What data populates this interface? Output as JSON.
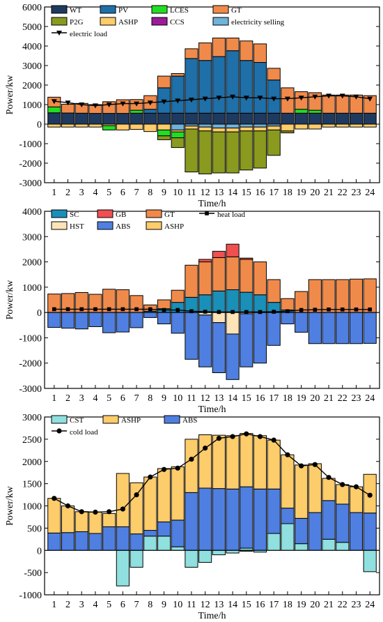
{
  "hours": [
    "1",
    "2",
    "3",
    "4",
    "5",
    "6",
    "7",
    "8",
    "9",
    "10",
    "11",
    "12",
    "13",
    "14",
    "15",
    "16",
    "17",
    "18",
    "19",
    "20",
    "21",
    "22",
    "23",
    "24"
  ],
  "chart_data": [
    {
      "type": "bar",
      "stacking": "positive-negative",
      "xlabel": "Time/h",
      "ylabel": "Power/kw",
      "ylim": [
        -3000,
        6000
      ],
      "yticks": [
        -3000,
        -2000,
        -1000,
        0,
        1000,
        2000,
        3000,
        4000,
        5000,
        6000
      ],
      "positive_series": [
        {
          "name": "WT",
          "color": "#1f3a5f",
          "values": [
            580,
            570,
            560,
            550,
            550,
            550,
            560,
            560,
            560,
            560,
            560,
            560,
            560,
            560,
            560,
            560,
            560,
            560,
            560,
            560,
            560,
            560,
            560,
            560
          ]
        },
        {
          "name": "PV",
          "color": "#1f6fa8",
          "values": [
            0,
            0,
            0,
            0,
            0,
            0,
            0,
            200,
            1300,
            1900,
            2800,
            2700,
            2900,
            3200,
            2700,
            2600,
            1700,
            0,
            0,
            0,
            0,
            0,
            0,
            0
          ]
        },
        {
          "name": "LCES",
          "color": "#22dd22",
          "values": [
            300,
            0,
            0,
            0,
            0,
            0,
            150,
            0,
            0,
            0,
            0,
            0,
            0,
            0,
            0,
            0,
            0,
            0,
            200,
            150,
            0,
            0,
            0,
            0
          ]
        },
        {
          "name": "GT",
          "color": "#f08a4b",
          "values": [
            500,
            450,
            500,
            450,
            600,
            700,
            550,
            700,
            600,
            130,
            500,
            900,
            950,
            650,
            1000,
            950,
            600,
            1300,
            900,
            900,
            930,
            930,
            930,
            900
          ]
        },
        {
          "name": "ASHP",
          "color": "#fdcc6b",
          "values": [
            0,
            0,
            0,
            0,
            0,
            0,
            0,
            0,
            0,
            0,
            0,
            0,
            0,
            0,
            0,
            0,
            0,
            0,
            0,
            0,
            0,
            0,
            0,
            0
          ]
        }
      ],
      "negative_series": [
        {
          "name": "electricity selling",
          "color": "#6fb3d9",
          "values": [
            0,
            0,
            0,
            0,
            0,
            0,
            0,
            0,
            0,
            -300,
            -100,
            -150,
            -200,
            -200,
            -150,
            -150,
            -100,
            0,
            0,
            0,
            0,
            0,
            0,
            0
          ]
        },
        {
          "name": "ASHP",
          "color": "#fdcc6b",
          "values": [
            -150,
            -150,
            -150,
            -150,
            -80,
            -300,
            -270,
            -380,
            -300,
            -100,
            -150,
            -200,
            -200,
            -200,
            -200,
            -200,
            -200,
            -350,
            -250,
            -250,
            -150,
            -150,
            -150,
            -150
          ]
        },
        {
          "name": "LCES",
          "color": "#22dd22",
          "values": [
            0,
            0,
            0,
            0,
            -220,
            0,
            0,
            0,
            -300,
            -300,
            0,
            0,
            0,
            0,
            0,
            0,
            0,
            0,
            0,
            0,
            0,
            0,
            0,
            0
          ]
        },
        {
          "name": "CCS",
          "color": "#9b1b9b",
          "values": [
            0,
            0,
            0,
            0,
            0,
            0,
            0,
            0,
            0,
            0,
            0,
            0,
            0,
            0,
            0,
            0,
            0,
            0,
            0,
            0,
            0,
            0,
            0,
            0
          ]
        },
        {
          "name": "P2G",
          "color": "#8a9a1e",
          "values": [
            0,
            0,
            0,
            0,
            0,
            0,
            0,
            0,
            -200,
            -500,
            -2200,
            -2200,
            -2100,
            -2100,
            -2000,
            -1900,
            -1300,
            -100,
            0,
            0,
            0,
            0,
            0,
            0
          ]
        }
      ],
      "line": {
        "name": "electric load",
        "values": [
          1170,
          1100,
          1000,
          950,
          1000,
          1050,
          1050,
          1100,
          1150,
          1200,
          1250,
          1300,
          1350,
          1400,
          1350,
          1350,
          1300,
          1300,
          1350,
          1400,
          1450,
          1450,
          1400,
          1300
        ]
      },
      "legend": [
        "WT",
        "PV",
        "LCES",
        "GT",
        "P2G",
        "ASHP",
        "CCS",
        "electricity selling",
        "electric load"
      ]
    },
    {
      "type": "bar",
      "stacking": "positive-negative",
      "xlabel": "Time/h",
      "ylabel": "Power/kw",
      "ylim": [
        -3000,
        4000
      ],
      "yticks": [
        -3000,
        -2000,
        -1000,
        0,
        1000,
        2000,
        3000,
        4000
      ],
      "positive_series": [
        {
          "name": "SC",
          "color": "#1a8fb8",
          "values": [
            0,
            0,
            0,
            0,
            0,
            0,
            0,
            50,
            150,
            400,
            600,
            700,
            850,
            900,
            800,
            700,
            400,
            100,
            0,
            0,
            0,
            0,
            0,
            0
          ]
        },
        {
          "name": "HST",
          "color": "#fde3b8",
          "values": [
            0,
            0,
            0,
            0,
            0,
            0,
            0,
            0,
            0,
            0,
            0,
            0,
            0,
            0,
            0,
            0,
            0,
            0,
            0,
            0,
            0,
            0,
            0,
            0
          ]
        },
        {
          "name": "GT",
          "color": "#f08a4b",
          "values": [
            730,
            750,
            790,
            720,
            920,
            900,
            670,
            250,
            350,
            480,
            1270,
            1300,
            1320,
            1300,
            1300,
            1300,
            900,
            450,
            830,
            1300,
            1300,
            1300,
            1320,
            1330
          ]
        },
        {
          "name": "GB",
          "color": "#f05050",
          "values": [
            0,
            0,
            0,
            0,
            0,
            0,
            0,
            0,
            0,
            0,
            0,
            100,
            250,
            500,
            50,
            0,
            0,
            0,
            0,
            0,
            0,
            0,
            0,
            0
          ]
        },
        {
          "name": "ASHP",
          "color": "#fdcc6b",
          "values": [
            0,
            0,
            0,
            0,
            0,
            0,
            0,
            0,
            0,
            0,
            0,
            0,
            0,
            0,
            0,
            0,
            0,
            0,
            0,
            0,
            0,
            0,
            0,
            0
          ]
        }
      ],
      "negative_series": [
        {
          "name": "HST",
          "color": "#fde3b8",
          "values": [
            0,
            0,
            0,
            0,
            0,
            0,
            0,
            0,
            0,
            0,
            0,
            -100,
            -400,
            -850,
            -50,
            0,
            0,
            0,
            0,
            0,
            0,
            0,
            0,
            0
          ]
        },
        {
          "name": "ABS",
          "color": "#4f7fe0",
          "values": [
            -590,
            -620,
            -650,
            -560,
            -800,
            -770,
            -600,
            -200,
            -450,
            -820,
            -1850,
            -2050,
            -1980,
            -1800,
            -2100,
            -2000,
            -1300,
            -450,
            -780,
            -1230,
            -1230,
            -1230,
            -1230,
            -1220
          ]
        }
      ],
      "line": {
        "name": "heat load",
        "values": [
          130,
          130,
          130,
          130,
          130,
          130,
          130,
          130,
          100,
          100,
          50,
          30,
          20,
          20,
          20,
          20,
          30,
          50,
          100,
          110,
          120,
          120,
          120,
          120
        ]
      },
      "legend": [
        "SC",
        "GB",
        "GT",
        "heat load",
        "HST",
        "ABS",
        "ASHP"
      ]
    },
    {
      "type": "bar",
      "stacking": "positive-negative",
      "xlabel": "Time/h",
      "ylabel": "Power/kw",
      "ylim": [
        -1000,
        3000
      ],
      "yticks": [
        -1000,
        -500,
        0,
        500,
        1000,
        1500,
        2000,
        2500,
        3000
      ],
      "positive_series": [
        {
          "name": "CST",
          "color": "#8fe0df",
          "values": [
            0,
            0,
            0,
            0,
            0,
            0,
            0,
            320,
            320,
            80,
            0,
            0,
            0,
            0,
            50,
            0,
            380,
            600,
            150,
            0,
            250,
            180,
            0,
            0
          ]
        },
        {
          "name": "ABS",
          "color": "#4f7fe0",
          "values": [
            390,
            400,
            420,
            380,
            530,
            530,
            370,
            130,
            320,
            600,
            1300,
            1400,
            1390,
            1380,
            1380,
            1380,
            1000,
            350,
            570,
            850,
            870,
            860,
            850,
            840
          ]
        },
        {
          "name": "ASHP",
          "color": "#fdcc6b",
          "values": [
            780,
            600,
            450,
            480,
            300,
            1200,
            1150,
            1200,
            1200,
            1200,
            1200,
            1200,
            1200,
            1200,
            1200,
            1200,
            1100,
            1200,
            1200,
            1100,
            500,
            440,
            580,
            870
          ]
        }
      ],
      "negative_series": [
        {
          "name": "CST",
          "color": "#8fe0df",
          "values": [
            0,
            0,
            0,
            0,
            0,
            -800,
            -380,
            0,
            0,
            0,
            -380,
            -270,
            -100,
            -60,
            -20,
            -40,
            0,
            0,
            0,
            0,
            0,
            0,
            0,
            -480
          ]
        }
      ],
      "line": {
        "name": "cold load",
        "values": [
          1170,
          1000,
          870,
          860,
          870,
          930,
          1250,
          1650,
          1820,
          1850,
          2050,
          2300,
          2520,
          2560,
          2620,
          2560,
          2480,
          2150,
          1900,
          1930,
          1640,
          1480,
          1430,
          1240
        ]
      },
      "legend": [
        "CST",
        "ASHP",
        "ABS",
        "cold load"
      ]
    }
  ]
}
